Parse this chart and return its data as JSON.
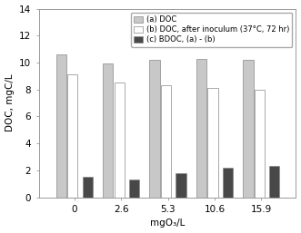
{
  "categories": [
    "0",
    "2.6",
    "5.3",
    "10.6",
    "15.9"
  ],
  "series_a": [
    10.6,
    9.9,
    10.2,
    10.3,
    10.2
  ],
  "series_b": [
    9.1,
    8.5,
    8.3,
    8.1,
    7.95
  ],
  "series_c": [
    1.5,
    1.3,
    1.8,
    2.2,
    2.3
  ],
  "color_a": "#c8c8c8",
  "color_b": "#ffffff",
  "color_c": "#484848",
  "bar_edge_color": "#888888",
  "ylabel": "DOC, mgC/L",
  "xlabel": "mgO₃/L",
  "ylim": [
    0,
    14
  ],
  "yticks": [
    0,
    2,
    4,
    6,
    8,
    10,
    12,
    14
  ],
  "legend_a": "(a) DOC",
  "legend_b": "(b) DOC, after inoculum (37°C, 72 hr)",
  "legend_c": "(c) BDOC, (a) - (b)",
  "bar_width": 0.22,
  "axis_fontsize": 7.5,
  "tick_fontsize": 7.5,
  "legend_fontsize": 6.0
}
